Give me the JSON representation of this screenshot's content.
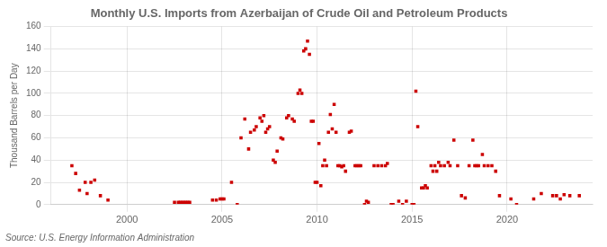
{
  "chart_data": {
    "type": "scatter",
    "title": "Monthly U.S. Imports from Azerbaijan of Crude Oil and Petroleum Products",
    "ylabel": "Thousand Barrels per Day",
    "annotations": [
      "Source: U.S. Energy Information Administration"
    ],
    "color": "#cc0000",
    "marker": "square",
    "grid": true,
    "xlim": [
      1996.0,
      2024.5
    ],
    "xticks": [
      2000,
      2005,
      2010,
      2015,
      2020
    ],
    "ylim": [
      0,
      160
    ],
    "yticks": [
      0,
      20,
      40,
      60,
      80,
      100,
      120,
      140,
      160
    ],
    "x": [
      1997.1,
      1997.3,
      1997.5,
      1997.8,
      1997.9,
      1998.1,
      1998.3,
      1998.6,
      1999.0,
      2002.5,
      2002.7,
      2002.8,
      2002.9,
      2003.0,
      2003.1,
      2003.2,
      2003.3,
      2004.5,
      2004.7,
      2004.9,
      2005.0,
      2005.1,
      2005.5,
      2005.8,
      2006.0,
      2006.2,
      2006.4,
      2006.5,
      2006.7,
      2006.8,
      2007.0,
      2007.1,
      2007.2,
      2007.3,
      2007.4,
      2007.5,
      2007.7,
      2007.8,
      2007.9,
      2008.1,
      2008.2,
      2008.4,
      2008.5,
      2008.7,
      2008.8,
      2009.0,
      2009.1,
      2009.2,
      2009.3,
      2009.4,
      2009.5,
      2009.6,
      2009.7,
      2009.8,
      2009.9,
      2010.0,
      2010.1,
      2010.2,
      2010.3,
      2010.4,
      2010.5,
      2010.6,
      2010.7,
      2010.8,
      2010.9,
      2011.0,
      2011.1,
      2011.2,
      2011.3,
      2011.4,
      2011.5,
      2011.7,
      2011.8,
      2012.0,
      2012.1,
      2012.2,
      2012.3,
      2012.5,
      2012.6,
      2012.7,
      2013.0,
      2013.2,
      2013.4,
      2013.6,
      2013.7,
      2013.9,
      2014.0,
      2014.3,
      2014.5,
      2014.7,
      2015.0,
      2015.1,
      2015.2,
      2015.3,
      2015.5,
      2015.6,
      2015.7,
      2015.8,
      2016.0,
      2016.1,
      2016.2,
      2016.3,
      2016.4,
      2016.5,
      2016.7,
      2016.9,
      2017.0,
      2017.2,
      2017.4,
      2017.6,
      2017.8,
      2018.0,
      2018.2,
      2018.3,
      2018.4,
      2018.5,
      2018.7,
      2018.8,
      2019.0,
      2019.2,
      2019.4,
      2019.6,
      2020.2,
      2020.5,
      2021.4,
      2021.8,
      2022.4,
      2022.6,
      2022.8,
      2023.0,
      2023.3,
      2023.8
    ],
    "values": [
      35,
      28,
      13,
      20,
      10,
      20,
      22,
      8,
      4,
      2,
      2,
      2,
      2,
      2,
      2,
      2,
      2,
      4,
      4,
      5,
      5,
      5,
      20,
      0,
      60,
      77,
      50,
      65,
      67,
      70,
      78,
      75,
      80,
      65,
      68,
      70,
      40,
      38,
      48,
      60,
      59,
      78,
      80,
      77,
      75,
      100,
      103,
      100,
      138,
      140,
      147,
      135,
      75,
      75,
      20,
      20,
      55,
      17,
      35,
      40,
      35,
      65,
      81,
      68,
      90,
      65,
      35,
      35,
      34,
      35,
      30,
      65,
      66,
      35,
      35,
      35,
      35,
      0,
      3,
      2,
      35,
      35,
      35,
      35,
      37,
      0,
      0,
      3,
      0,
      3,
      0,
      0,
      102,
      70,
      15,
      15,
      17,
      15,
      35,
      30,
      35,
      30,
      38,
      35,
      35,
      38,
      35,
      58,
      35,
      8,
      6,
      35,
      58,
      35,
      35,
      35,
      45,
      35,
      35,
      35,
      30,
      8,
      5,
      0,
      5,
      10,
      8,
      8,
      5,
      9,
      8,
      8
    ]
  }
}
